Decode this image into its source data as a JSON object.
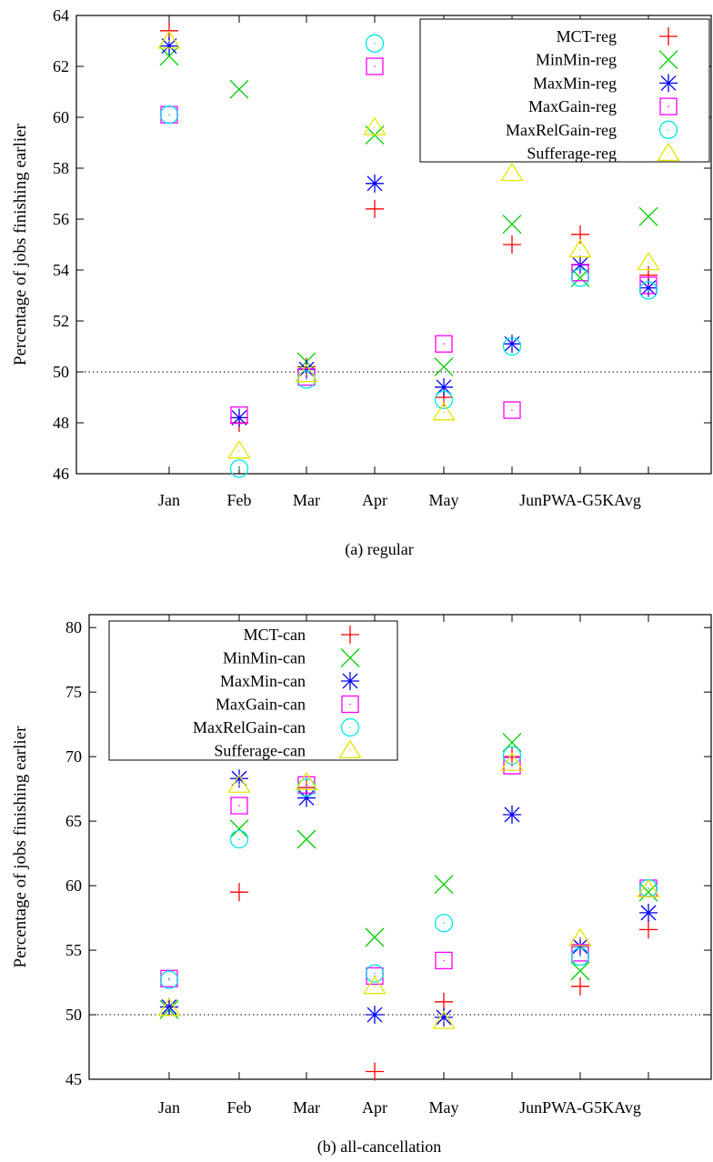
{
  "charts": [
    {
      "type": "scatter",
      "caption": "(a)  regular",
      "ylabel": "Percentage of jobs finishing earlier",
      "xlabel": "",
      "categories": [
        "Jan",
        "Feb",
        "Mar",
        "Apr",
        "May",
        "Jun",
        "PWA-G5K",
        "Avg"
      ],
      "tick_labels": [
        "Jan",
        "Feb",
        "Mar",
        "Apr",
        "May",
        "JunPWA-G5KAvg"
      ],
      "ylim": [
        46,
        64
      ],
      "yticks": [
        46,
        48,
        50,
        52,
        54,
        56,
        58,
        60,
        62,
        64
      ],
      "reference_line": 50,
      "legend_position": "top-right",
      "series": [
        {
          "name": "MCT-reg",
          "marker": "plus",
          "color": "#ff0000",
          "values": [
            63.4,
            48.0,
            50.2,
            56.4,
            49.0,
            55.0,
            55.4,
            53.8
          ]
        },
        {
          "name": "MinMin-reg",
          "marker": "cross",
          "color": "#00cc00",
          "values": [
            62.4,
            61.1,
            50.4,
            59.3,
            50.2,
            55.8,
            53.7,
            56.1
          ]
        },
        {
          "name": "MaxMin-reg",
          "marker": "star",
          "color": "#0000ff",
          "values": [
            62.8,
            48.2,
            50.1,
            57.4,
            49.4,
            51.1,
            54.2,
            53.3
          ]
        },
        {
          "name": "MaxGain-reg",
          "marker": "square",
          "color": "#ff00ff",
          "values": [
            60.1,
            48.3,
            49.8,
            62.0,
            51.1,
            48.5,
            53.9,
            53.4
          ]
        },
        {
          "name": "MaxRelGain-reg",
          "marker": "circle",
          "color": "#00e5e5",
          "values": [
            60.1,
            46.2,
            49.7,
            62.9,
            48.9,
            51.0,
            53.7,
            53.2
          ]
        },
        {
          "name": "Sufferage-reg",
          "marker": "triangle",
          "color": "#e5e500",
          "values": [
            63.0,
            46.9,
            49.9,
            59.6,
            48.4,
            57.8,
            54.8,
            54.3
          ]
        }
      ]
    },
    {
      "type": "scatter",
      "caption": "(b)  all-cancellation",
      "ylabel": "Percentage of jobs finishing earlier",
      "xlabel": "",
      "categories": [
        "Jan",
        "Feb",
        "Mar",
        "Apr",
        "May",
        "Jun",
        "PWA-G5K",
        "Avg"
      ],
      "tick_labels": [
        "Jan",
        "Feb",
        "Mar",
        "Apr",
        "May",
        "JunPWA-G5KAvg"
      ],
      "ylim": [
        45,
        81
      ],
      "yticks": [
        45,
        50,
        55,
        60,
        65,
        70,
        75,
        80
      ],
      "reference_line": 50,
      "legend_position": "top-left",
      "series": [
        {
          "name": "MCT-can",
          "marker": "plus",
          "color": "#ff0000",
          "values": [
            50.6,
            59.5,
            67.6,
            45.6,
            51.0,
            70.0,
            52.2,
            56.6
          ]
        },
        {
          "name": "MinMin-can",
          "marker": "cross",
          "color": "#00cc00",
          "values": [
            50.4,
            64.4,
            63.6,
            56.0,
            60.1,
            71.1,
            53.4,
            59.5
          ]
        },
        {
          "name": "MaxMin-can",
          "marker": "star",
          "color": "#0000ff",
          "values": [
            50.6,
            68.3,
            66.8,
            50.0,
            49.8,
            65.5,
            55.3,
            57.9
          ]
        },
        {
          "name": "MaxGain-can",
          "marker": "square",
          "color": "#ff00ff",
          "values": [
            52.8,
            66.2,
            67.8,
            53.0,
            54.2,
            69.3,
            54.8,
            59.8
          ]
        },
        {
          "name": "MaxRelGain-can",
          "marker": "circle",
          "color": "#00e5e5",
          "values": [
            52.7,
            63.6,
            67.6,
            53.2,
            57.1,
            70.1,
            54.5,
            59.8
          ]
        },
        {
          "name": "Sufferage-can",
          "marker": "triangle",
          "color": "#e5e500",
          "values": [
            50.5,
            67.8,
            68.0,
            52.2,
            49.5,
            69.5,
            55.9,
            59.7
          ]
        }
      ]
    }
  ]
}
